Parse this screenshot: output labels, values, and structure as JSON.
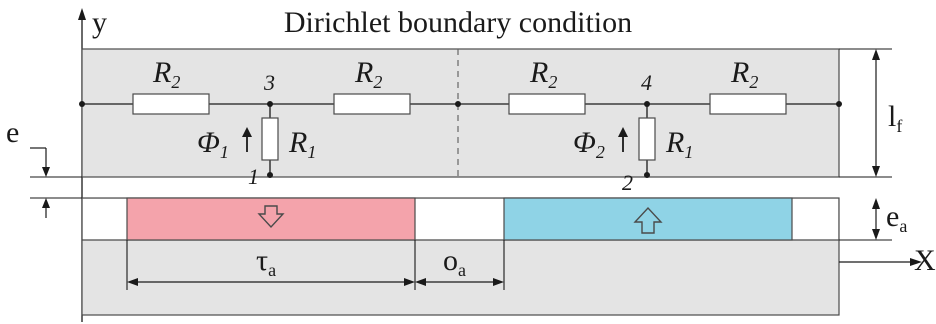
{
  "title": "Dirichlet boundary condition",
  "axes": {
    "y_label": "y",
    "x_label": "X"
  },
  "nodes": [
    "3",
    "4",
    "1",
    "2"
  ],
  "resistors": {
    "r2_main": "R",
    "r2_sub": "2",
    "r1_main": "R",
    "r1_sub": "1"
  },
  "fluxes": {
    "phi1_main": "Φ",
    "phi1_sub": "1",
    "phi2_main": "Φ",
    "phi2_sub": "2"
  },
  "dimensions": {
    "e": "e",
    "lf_main": "l",
    "lf_sub": "f",
    "ea_main": "e",
    "ea_sub": "a",
    "tau_main": "τ",
    "tau_sub": "a",
    "oa_main": "o",
    "oa_sub": "a"
  },
  "magnet_arrows": {
    "left": "down",
    "right": "up"
  },
  "colors": {
    "region_fill": "#e4e4e4",
    "outline": "#4a4a4a",
    "magnet_down": "#f4a3ab",
    "magnet_up": "#8fd3e6",
    "resistor_fill": "#ffffff"
  }
}
